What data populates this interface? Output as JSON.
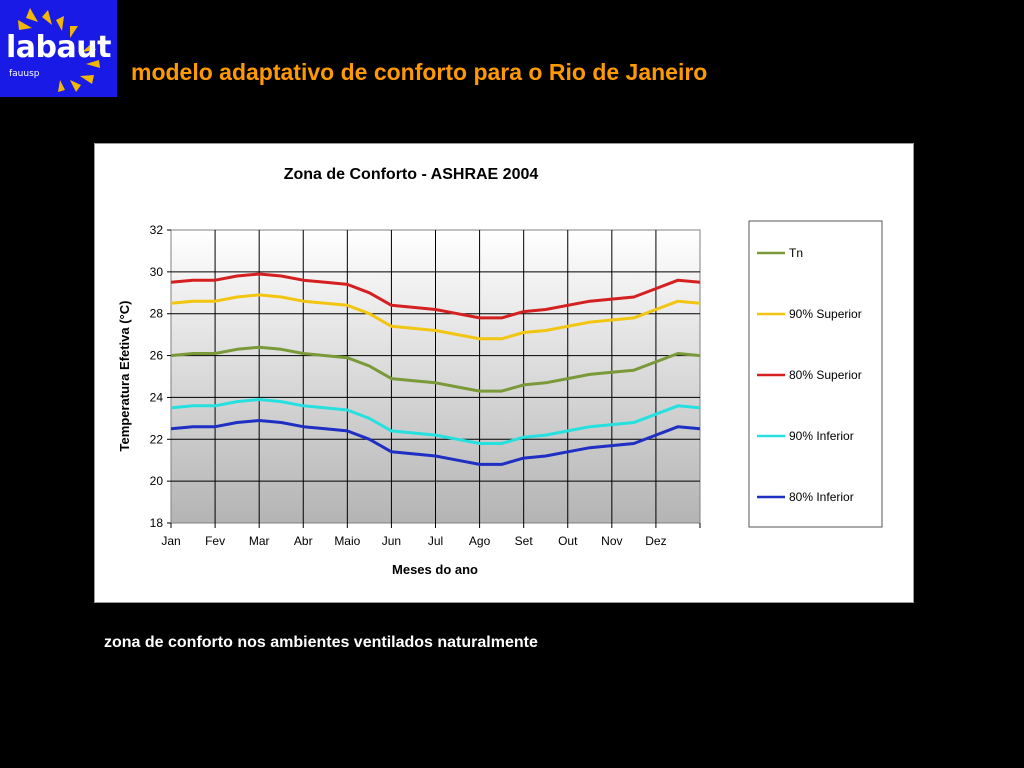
{
  "logo": {
    "text": "labaut",
    "subtext": "fauusp"
  },
  "page": {
    "title": "modelo adaptativo de conforto para o Rio de Janeiro",
    "caption": "zona de conforto nos ambientes ventilados naturalmente"
  },
  "chart_data": {
    "type": "line",
    "title": "Zona de Conforto - ASHRAE  2004",
    "xlabel": "Meses do ano",
    "ylabel": "Temperatura Efetiva (°C)",
    "ylim": [
      18,
      32
    ],
    "yticks": [
      18,
      20,
      22,
      24,
      26,
      28,
      30,
      32
    ],
    "categories": [
      "Jan",
      "Fev",
      "Mar",
      "Abr",
      "Maio",
      "Jun",
      "Jul",
      "Ago",
      "Set",
      "Out",
      "Nov",
      "Dez"
    ],
    "grid": true,
    "legend_position": "right",
    "x": [
      0,
      0.5,
      1,
      1.5,
      2,
      2.5,
      3,
      3.5,
      4,
      4.5,
      5,
      5.5,
      6,
      6.5,
      7,
      7.5,
      8,
      8.5,
      9,
      9.5,
      10,
      10.5,
      11,
      11.5,
      12
    ],
    "series": [
      {
        "name": "Tn",
        "color": "#7a9a3a",
        "values": [
          26.0,
          26.1,
          26.1,
          26.3,
          26.4,
          26.3,
          26.1,
          26.0,
          25.9,
          25.5,
          24.9,
          24.8,
          24.7,
          24.5,
          24.3,
          24.3,
          24.6,
          24.7,
          24.9,
          25.1,
          25.2,
          25.3,
          25.7,
          26.1,
          26.0
        ]
      },
      {
        "name": "90% Superior",
        "color": "#f2c511",
        "values": [
          28.5,
          28.6,
          28.6,
          28.8,
          28.9,
          28.8,
          28.6,
          28.5,
          28.4,
          28.0,
          27.4,
          27.3,
          27.2,
          27.0,
          26.8,
          26.8,
          27.1,
          27.2,
          27.4,
          27.6,
          27.7,
          27.8,
          28.2,
          28.6,
          28.5
        ]
      },
      {
        "name": "80% Superior",
        "color": "#d42020",
        "values": [
          29.5,
          29.6,
          29.6,
          29.8,
          29.9,
          29.8,
          29.6,
          29.5,
          29.4,
          29.0,
          28.4,
          28.3,
          28.2,
          28.0,
          27.8,
          27.8,
          28.1,
          28.2,
          28.4,
          28.6,
          28.7,
          28.8,
          29.2,
          29.6,
          29.5
        ]
      },
      {
        "name": "90% Inferior",
        "color": "#26e0e0",
        "values": [
          23.5,
          23.6,
          23.6,
          23.8,
          23.9,
          23.8,
          23.6,
          23.5,
          23.4,
          23.0,
          22.4,
          22.3,
          22.2,
          22.0,
          21.8,
          21.8,
          22.1,
          22.2,
          22.4,
          22.6,
          22.7,
          22.8,
          23.2,
          23.6,
          23.5
        ]
      },
      {
        "name": "80% Inferior",
        "color": "#1f2fc4",
        "values": [
          22.5,
          22.6,
          22.6,
          22.8,
          22.9,
          22.8,
          22.6,
          22.5,
          22.4,
          22.0,
          21.4,
          21.3,
          21.2,
          21.0,
          20.8,
          20.8,
          21.1,
          21.2,
          21.4,
          21.6,
          21.7,
          21.8,
          22.2,
          22.6,
          22.5
        ]
      }
    ]
  }
}
